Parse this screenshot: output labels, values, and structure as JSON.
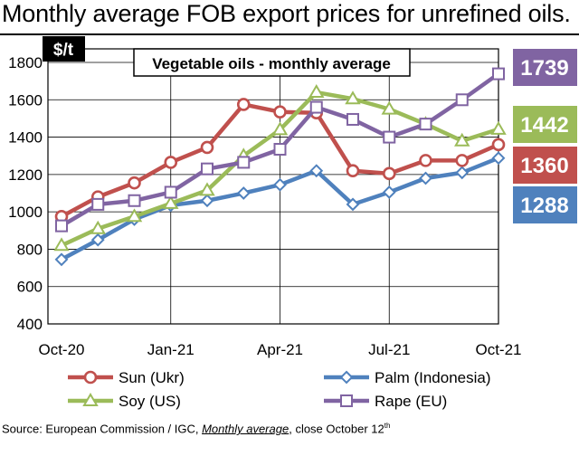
{
  "header": {
    "title": "Monthly average FOB export prices for unrefined oils.",
    "source_prefix": "Source: European Commission / IGC, ",
    "source_link": "Monthly average",
    "source_suffix": ", close October 12",
    "source_sup": "th"
  },
  "chart_data": {
    "type": "line",
    "title": "Vegetable oils - monthly average",
    "ylabel": "$/t",
    "ylim": [
      400,
      1800
    ],
    "yticks": [
      "400",
      "600",
      "800",
      "1000",
      "1200",
      "1400",
      "1600",
      "1800"
    ],
    "xticks": [
      {
        "label": "Oct-20",
        "index": 0
      },
      {
        "label": "Jan-21",
        "index": 3
      },
      {
        "label": "Apr-21",
        "index": 6
      },
      {
        "label": "Jul-21",
        "index": 9
      },
      {
        "label": "Oct-21",
        "index": 12
      }
    ],
    "categories": [
      "Oct-20",
      "Nov-20",
      "Dec-20",
      "Jan-21",
      "Feb-21",
      "Mar-21",
      "Apr-21",
      "May-21",
      "Jun-21",
      "Jul-21",
      "Aug-21",
      "Sep-21",
      "Oct-21"
    ],
    "series": [
      {
        "name": "Sun (Ukr)",
        "color": "#c0504d",
        "marker": "circle",
        "values": [
          975,
          1080,
          1155,
          1265,
          1345,
          1575,
          1535,
          1530,
          1220,
          1205,
          1275,
          1275,
          1360
        ],
        "end_label": "1360"
      },
      {
        "name": "Palm (Indonesia)",
        "color": "#4f81bd",
        "marker": "diamond",
        "values": [
          745,
          850,
          960,
          1035,
          1060,
          1100,
          1145,
          1220,
          1040,
          1105,
          1180,
          1210,
          1288
        ],
        "end_label": "1288"
      },
      {
        "name": "Soy (US)",
        "color": "#9bbb59",
        "marker": "triangle",
        "values": [
          820,
          910,
          975,
          1045,
          1115,
          1300,
          1440,
          1640,
          1605,
          1550,
          1470,
          1380,
          1442
        ],
        "end_label": "1442"
      },
      {
        "name": "Rape (EU)",
        "color": "#8064a2",
        "marker": "square",
        "values": [
          925,
          1040,
          1060,
          1105,
          1230,
          1265,
          1335,
          1560,
          1495,
          1400,
          1470,
          1600,
          1739
        ],
        "end_label": "1739"
      }
    ]
  }
}
